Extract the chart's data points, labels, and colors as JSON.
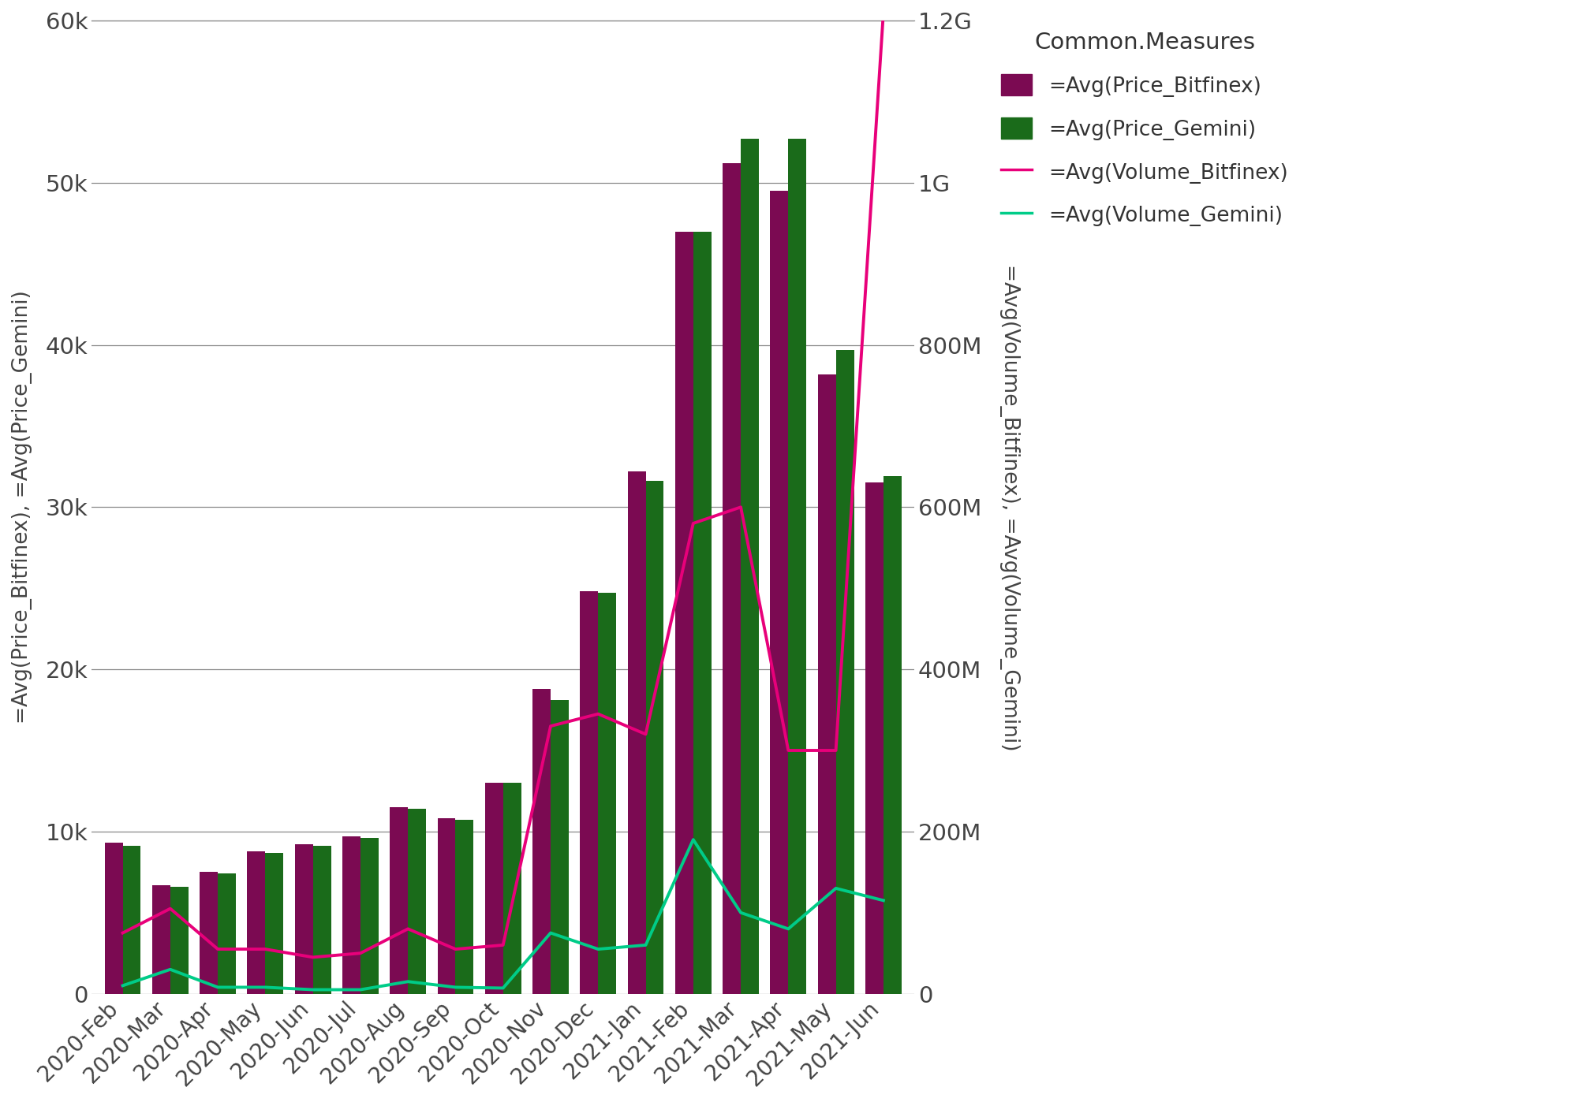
{
  "categories": [
    "2020-Feb",
    "2020-Mar",
    "2020-Apr",
    "2020-May",
    "2020-Jun",
    "2020-Jul",
    "2020-Aug",
    "2020-Sep",
    "2020-Oct",
    "2020-Nov",
    "2020-Dec",
    "2021-Jan",
    "2021-Feb",
    "2021-Mar",
    "2021-Apr",
    "2021-May",
    "2021-Jun"
  ],
  "price_bitfinex": [
    9300,
    6700,
    7500,
    8800,
    9200,
    9700,
    11500,
    10800,
    13000,
    18800,
    24800,
    32200,
    47000,
    51200,
    49500,
    38200,
    31500
  ],
  "price_gemini": [
    9100,
    6600,
    7400,
    8700,
    9100,
    9600,
    11400,
    10700,
    13000,
    18100,
    24700,
    31600,
    47000,
    52700,
    52700,
    39700,
    31900
  ],
  "volume_bitfinex": [
    75000000,
    105000000,
    55000000,
    55000000,
    45000000,
    50000000,
    80000000,
    55000000,
    60000000,
    330000000,
    345000000,
    320000000,
    580000000,
    600000000,
    300000000,
    300000000,
    1210000000
  ],
  "volume_gemini": [
    10000000,
    30000000,
    8000000,
    8000000,
    5000000,
    5000000,
    15000000,
    8000000,
    7000000,
    75000000,
    55000000,
    60000000,
    190000000,
    100000000,
    80000000,
    130000000,
    115000000
  ],
  "bar_color_bitfinex": "#7B0A52",
  "bar_color_gemini": "#1A6B1A",
  "line_color_bitfinex": "#E8007A",
  "line_color_gemini": "#00CC88",
  "left_ylabel": "=Avg(Price_Bitfinex), =Avg(Price_Gemini)",
  "right_ylabel": "=Avg(Volume_Bitfinex), =Avg(Volume_Gemini)",
  "legend_title": "Common.Measures",
  "legend_labels": [
    "=Avg(Price_Bitfinex)",
    "=Avg(Price_Gemini)",
    "=Avg(Volume_Bitfinex)",
    "=Avg(Volume_Gemini)"
  ],
  "left_ylim": [
    0,
    60000
  ],
  "right_ylim": [
    0,
    1200000000
  ],
  "left_yticks": [
    0,
    10000,
    20000,
    30000,
    40000,
    50000,
    60000
  ],
  "left_yticklabels": [
    "0",
    "10k",
    "20k",
    "30k",
    "40k",
    "50k",
    "60k"
  ],
  "right_yticks": [
    0,
    200000000,
    400000000,
    600000000,
    800000000,
    1000000000,
    1200000000
  ],
  "right_yticklabels": [
    "0",
    "200M",
    "400M",
    "600M",
    "800M",
    "1G",
    "1.2G"
  ],
  "background_color": "#FFFFFF",
  "grid_color": "#888888",
  "bar_width": 0.38
}
